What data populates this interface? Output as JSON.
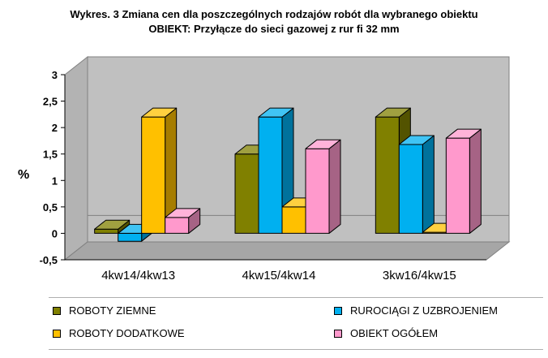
{
  "title_line1": "Wykres. 3 Zmiana cen dla poszczególnych rodzajów robót dla wybranego obiektu",
  "title_line2": "OBIEKT: Przyłącze do sieci gazowej z rur fi 32 mm",
  "chart_data": {
    "type": "bar",
    "ylabel": "%",
    "xlabel": "",
    "ylim": [
      -0.5,
      3
    ],
    "yticks": [
      "-0,5",
      "0",
      "0,5",
      "1",
      "1,5",
      "2",
      "2,5",
      "3"
    ],
    "grid": false,
    "legend_position": "bottom",
    "categories": [
      "4kw14/4kw13",
      "4kw15/4kw14",
      "3kw16/4kw15"
    ],
    "series": [
      {
        "name": "ROBOTY ZIEMNE",
        "color": "#808000",
        "values": [
          0.08,
          1.5,
          2.2
        ]
      },
      {
        "name": "RUROCIĄGI Z UZBROJENIEM",
        "color": "#00b0f0",
        "values": [
          -0.15,
          2.2,
          1.68
        ]
      },
      {
        "name": "ROBOTY DODATKOWE",
        "color": "#ffc000",
        "values": [
          2.2,
          0.5,
          0.02
        ]
      },
      {
        "name": "OBIEKT OGÓŁEM",
        "color": "#ff99cc",
        "values": [
          0.3,
          1.6,
          1.8
        ]
      }
    ]
  }
}
